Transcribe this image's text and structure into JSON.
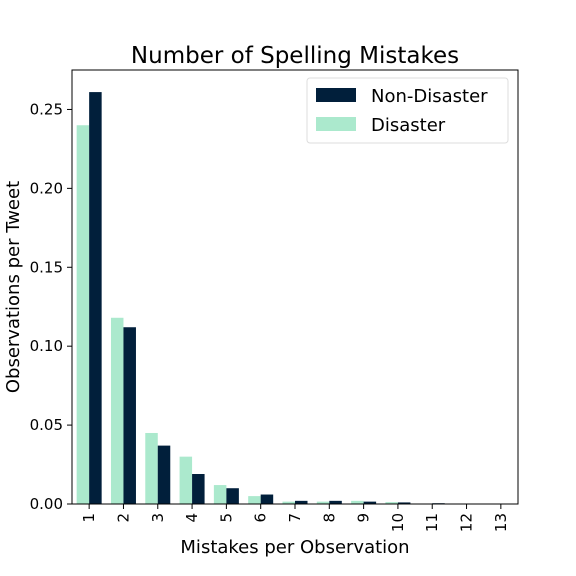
{
  "chart_data": {
    "type": "bar",
    "title": "Number of Spelling Mistakes",
    "xlabel": "Mistakes per Observation",
    "ylabel": "Observations per Tweet",
    "categories": [
      "1",
      "2",
      "3",
      "4",
      "5",
      "6",
      "7",
      "8",
      "9",
      "10",
      "11",
      "12",
      "13"
    ],
    "ylim": [
      0,
      0.275
    ],
    "yticks": [
      "0.00",
      "0.05",
      "0.10",
      "0.15",
      "0.20",
      "0.25"
    ],
    "legend_position": "top-right",
    "grid": false,
    "series": [
      {
        "name": "Non-Disaster",
        "color": "#011f3b",
        "values": [
          0.261,
          0.112,
          0.037,
          0.019,
          0.01,
          0.006,
          0.002,
          0.002,
          0.0015,
          0.001,
          0.0005,
          0.0,
          0.0
        ]
      },
      {
        "name": "Disaster",
        "color": "#abe9cd",
        "values": [
          0.24,
          0.118,
          0.045,
          0.03,
          0.012,
          0.005,
          0.0015,
          0.0015,
          0.002,
          0.0012,
          0.0,
          0.0,
          0.0
        ]
      }
    ]
  }
}
